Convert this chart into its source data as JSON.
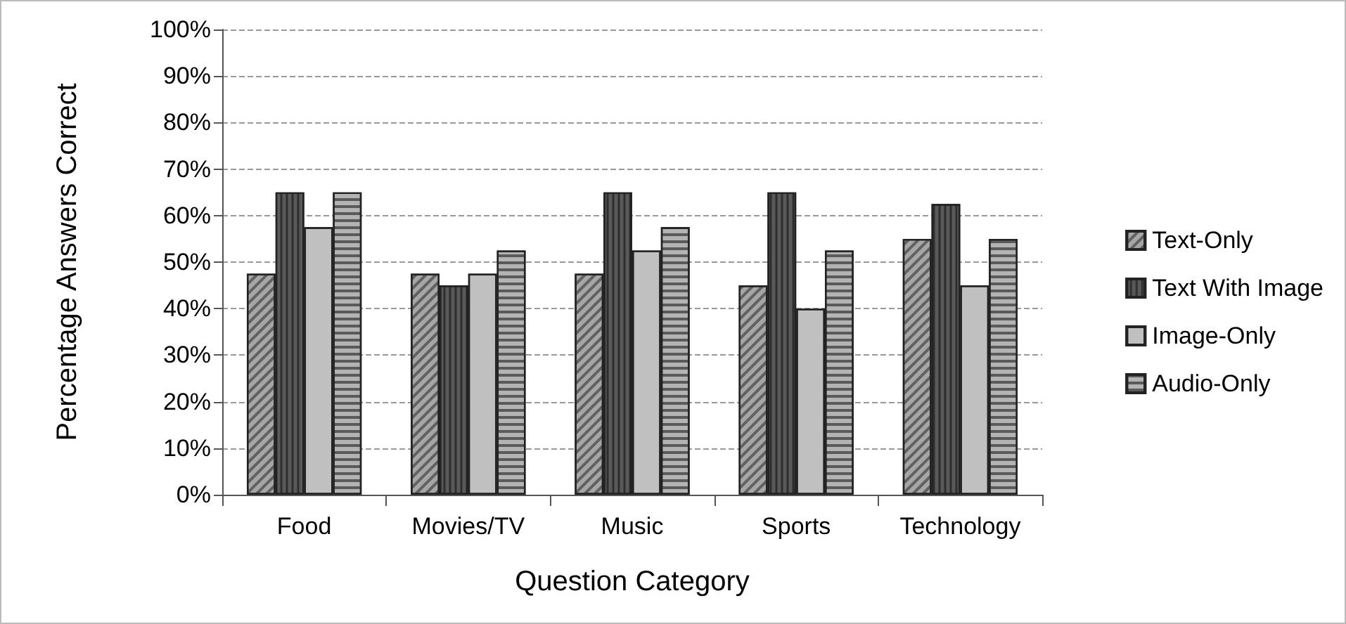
{
  "chart_data": {
    "type": "bar",
    "xlabel": "Question Category",
    "ylabel": "Percentage Answers Correct",
    "categories": [
      "Food",
      "Movies/TV",
      "Music",
      "Sports",
      "Technology"
    ],
    "series": [
      {
        "name": "Text-Only",
        "color": "#a6a6a6",
        "values": [
          47.5,
          47.5,
          47.5,
          45,
          55
        ]
      },
      {
        "name": "Text With Image",
        "color": "#595959",
        "values": [
          65,
          45,
          65,
          65,
          62.5
        ]
      },
      {
        "name": "Image-Only",
        "color": "#c0c0c0",
        "values": [
          57.5,
          47.5,
          52.5,
          40,
          45
        ]
      },
      {
        "name": "Audio-Only",
        "color": "#b3b3b3",
        "values": [
          65,
          52.5,
          57.5,
          52.5,
          55
        ]
      }
    ],
    "ylim": [
      0,
      100
    ],
    "yticks": [
      {
        "value": 0,
        "label": "0%"
      },
      {
        "value": 10,
        "label": "10%"
      },
      {
        "value": 20,
        "label": "20%"
      },
      {
        "value": 30,
        "label": "30%"
      },
      {
        "value": 40,
        "label": "40%"
      },
      {
        "value": 50,
        "label": "50%"
      },
      {
        "value": 60,
        "label": "60%"
      },
      {
        "value": 70,
        "label": "70%"
      },
      {
        "value": 80,
        "label": "80%"
      },
      {
        "value": 90,
        "label": "90%"
      },
      {
        "value": 100,
        "label": "100%"
      }
    ],
    "grid": "y",
    "legend": "right"
  }
}
